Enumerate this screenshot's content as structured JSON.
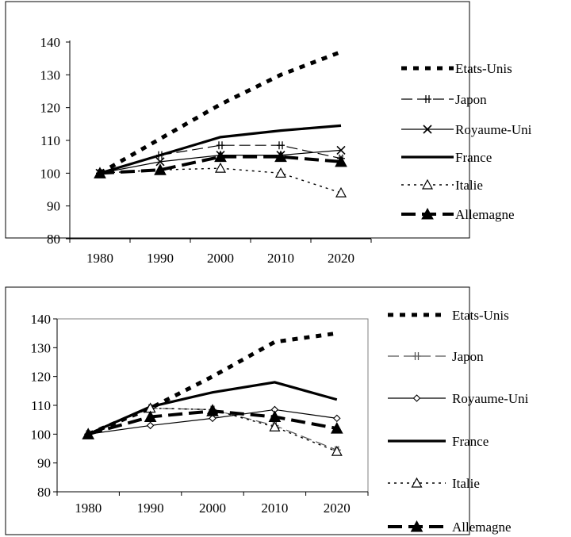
{
  "chart_data": [
    {
      "type": "line",
      "title": "",
      "xlabel": "",
      "ylabel": "",
      "x": [
        "1980",
        "1990",
        "2000",
        "2010",
        "2020"
      ],
      "ylim": [
        80,
        140
      ],
      "yticks": [
        "80",
        "90",
        "100",
        "110",
        "120",
        "130",
        "140"
      ],
      "grid": false,
      "legend_position": "right",
      "series": [
        {
          "name": "Etats-Unis",
          "values": [
            100,
            110.5,
            121,
            130,
            137
          ],
          "color": "#000000",
          "style": "dotted-heavy",
          "marker": "none"
        },
        {
          "name": "Japon",
          "values": [
            100,
            105.5,
            108.5,
            108.5,
            104.5
          ],
          "color": "#000000",
          "style": "dashed",
          "marker": "plus-bar"
        },
        {
          "name": "Royaume-Uni",
          "values": [
            100,
            103.5,
            105.5,
            105.5,
            107
          ],
          "color": "#000000",
          "style": "solid-thin",
          "marker": "x"
        },
        {
          "name": "France",
          "values": [
            100,
            105.5,
            111,
            113,
            114.5
          ],
          "color": "#000000",
          "style": "solid-thick",
          "marker": "none"
        },
        {
          "name": "Italie",
          "values": [
            100,
            101,
            101.5,
            100,
            94
          ],
          "color": "#000000",
          "style": "dotted",
          "marker": "open-triangle"
        },
        {
          "name": "Allemagne",
          "values": [
            100,
            101,
            105,
            105,
            103.5
          ],
          "color": "#000000",
          "style": "dashed-heavy",
          "marker": "filled-triangle"
        }
      ]
    },
    {
      "type": "line",
      "title": "",
      "xlabel": "",
      "ylabel": "",
      "x": [
        "1980",
        "1990",
        "2000",
        "2010",
        "2020"
      ],
      "ylim": [
        80,
        140
      ],
      "yticks": [
        "80",
        "90",
        "100",
        "110",
        "120",
        "130",
        "140"
      ],
      "grid": false,
      "legend_position": "right",
      "series": [
        {
          "name": "Etats-Unis",
          "values": [
            100,
            109,
            120,
            132,
            135
          ],
          "color": "#000000",
          "style": "dotted-heavy",
          "marker": "none"
        },
        {
          "name": "Japon",
          "values": [
            100,
            109,
            108.5,
            103,
            94.5
          ],
          "color": "#555555",
          "style": "dashed",
          "marker": "plus-bar"
        },
        {
          "name": "Royaume-Uni",
          "values": [
            100,
            103,
            105.5,
            108.5,
            105.5
          ],
          "color": "#000000",
          "style": "solid-thin",
          "marker": "diamond"
        },
        {
          "name": "France",
          "values": [
            100,
            109.5,
            114.5,
            118,
            112
          ],
          "color": "#000000",
          "style": "solid-thick",
          "marker": "none"
        },
        {
          "name": "Italie",
          "values": [
            100,
            109,
            108.5,
            102.5,
            94
          ],
          "color": "#000000",
          "style": "dotted",
          "marker": "open-triangle"
        },
        {
          "name": "Allemagne",
          "values": [
            100,
            106,
            108,
            106,
            102
          ],
          "color": "#000000",
          "style": "dashed-heavy",
          "marker": "filled-triangle"
        }
      ]
    }
  ]
}
